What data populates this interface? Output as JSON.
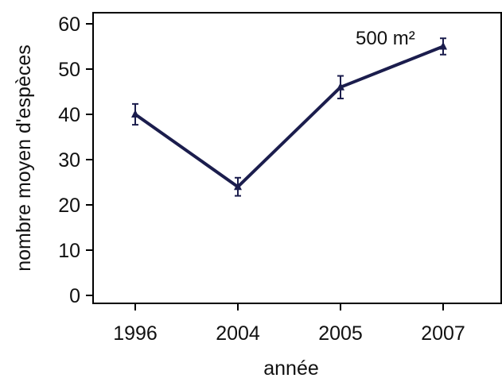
{
  "chart_data": {
    "type": "line",
    "title": "",
    "xlabel": "année",
    "ylabel": "nombre moyen d'espèces",
    "categories": [
      "1996",
      "2004",
      "2005",
      "2007"
    ],
    "ylim": [
      0,
      62
    ],
    "yticks": [
      0,
      10,
      20,
      30,
      40,
      50,
      60
    ],
    "ytick_labels": [
      "0",
      "10",
      "20",
      "30",
      "40",
      "50",
      "60"
    ],
    "grid": false,
    "legend": "none",
    "series": [
      {
        "values": [
          40,
          24,
          46,
          55
        ],
        "errors": [
          2.3,
          2.0,
          2.5,
          1.8
        ]
      }
    ],
    "annotations": [
      {
        "text": "500 m²",
        "near_category": "2007"
      }
    ],
    "colors": {
      "line": "#1b1d4d",
      "marker": "#1b1d4d",
      "error_bar": "#1b1d4d",
      "axis": "#000000"
    }
  }
}
